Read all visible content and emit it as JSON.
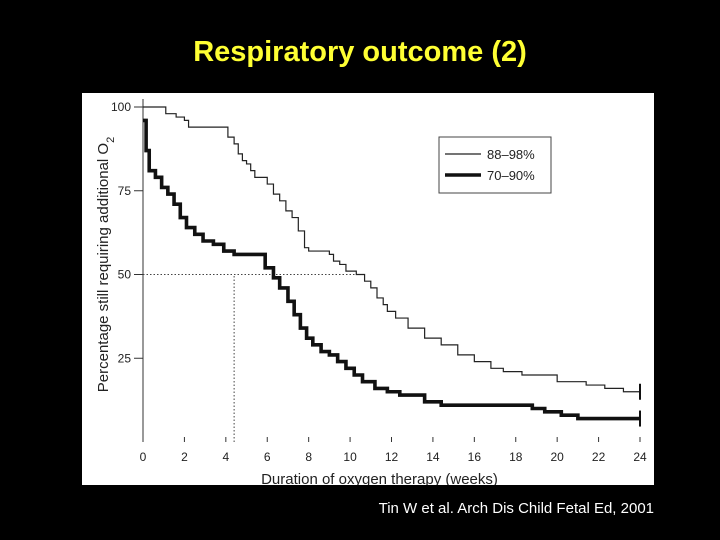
{
  "slide": {
    "title": "Respiratory outcome (2)",
    "citation": "Tin W et al. Arch Dis Child Fetal Ed, 2001",
    "background_color": "#000000",
    "title_color": "#ffff33",
    "citation_color": "#ffffff"
  },
  "chart_data": {
    "type": "line",
    "title": "",
    "xlabel": "Duration of oxygen therapy (weeks)",
    "ylabel": "Percentage still requiring additional O",
    "ylabel_subscript": "2",
    "xlim": [
      0,
      24
    ],
    "ylim": [
      0,
      100
    ],
    "xticks": [
      0,
      2,
      4,
      6,
      8,
      10,
      12,
      14,
      16,
      18,
      20,
      22,
      24
    ],
    "yticks": [
      25,
      50,
      75,
      100
    ],
    "grid": false,
    "legend_position": "top-right",
    "line_style": "step",
    "series": [
      {
        "name": "88–98%",
        "style": "thin",
        "color": "#222222",
        "x": [
          0,
          1.1,
          1.6,
          2.0,
          2.2,
          3.0,
          4.1,
          4.4,
          4.6,
          4.8,
          5.0,
          5.2,
          5.4,
          6.0,
          6.3,
          6.6,
          6.9,
          7.2,
          7.5,
          7.8,
          8.0,
          8.6,
          9.0,
          9.2,
          9.5,
          9.8,
          10.3,
          10.7,
          11.0,
          11.3,
          11.6,
          11.8,
          12.2,
          12.8,
          13.6,
          14.4,
          15.2,
          16.0,
          16.8,
          17.4,
          18.3,
          20.0,
          21.4,
          22.3,
          23.2,
          24.0
        ],
        "y": [
          100,
          98,
          97,
          96,
          94,
          94,
          91,
          89,
          86,
          84,
          83,
          81,
          79,
          77,
          74,
          72,
          69,
          67,
          63,
          58,
          57,
          57,
          56,
          54,
          53,
          51,
          50,
          48,
          46,
          43,
          41,
          39,
          37,
          34,
          31,
          29,
          26,
          24,
          22,
          21,
          20,
          18,
          17,
          16,
          15,
          15
        ]
      },
      {
        "name": "70–90%",
        "style": "thick",
        "color": "#111111",
        "x": [
          0,
          0.15,
          0.3,
          0.6,
          0.9,
          1.2,
          1.5,
          1.8,
          2.1,
          2.5,
          2.9,
          3.4,
          3.9,
          4.4,
          5.9,
          6.3,
          6.6,
          7.0,
          7.3,
          7.6,
          7.9,
          8.2,
          8.6,
          9.0,
          9.4,
          9.8,
          10.2,
          10.6,
          11.2,
          11.8,
          12.4,
          13.6,
          14.4,
          18.8,
          19.4,
          20.2,
          21.0,
          24.0
        ],
        "y": [
          96,
          87,
          81,
          79,
          76,
          74,
          71,
          67,
          64,
          62,
          60,
          59,
          57,
          56,
          52,
          49,
          46,
          42,
          38,
          34,
          31,
          29,
          27,
          26,
          24,
          22,
          20,
          18,
          16,
          15,
          14,
          12,
          11,
          10,
          9,
          8,
          7,
          7
        ]
      }
    ],
    "annotations": [
      {
        "type": "reference-line",
        "y": 50,
        "x_from": 0,
        "x_to": 10.3,
        "style": "dotted"
      },
      {
        "type": "reference-line",
        "x": 4.4,
        "y_from": 0,
        "y_to": 50,
        "style": "dotted"
      }
    ],
    "end_caps": [
      {
        "x": 24,
        "y": 15
      },
      {
        "x": 24,
        "y": 7
      }
    ]
  }
}
